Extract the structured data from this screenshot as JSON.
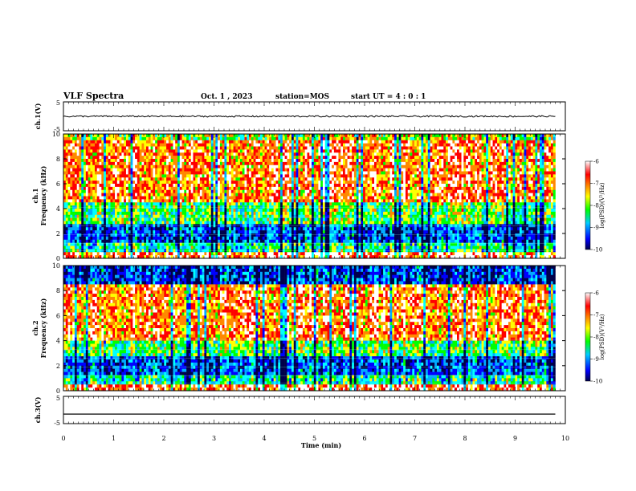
{
  "header": {
    "title": "VLF Spectra",
    "date": "Oct. 1 , 2023",
    "station": "station=MOS",
    "start_ut": "start UT =  4 : 0 : 1"
  },
  "chart_data": [
    {
      "type": "line",
      "panel": "ch1-waveform",
      "ylabel": "ch.1(V)",
      "ylim": [
        -5,
        5
      ],
      "y_ticks": [
        "5",
        "-5"
      ],
      "x_range_min": [
        0,
        10
      ],
      "data_extent_min": [
        0,
        9.8
      ],
      "series": [
        {
          "values_approx_V": 0.0
        }
      ]
    },
    {
      "type": "heatmap",
      "panel": "ch1-spectrogram",
      "ylabel_line1": "ch.1",
      "ylabel_line2": "Frequency (kHz)",
      "ylim": [
        0,
        10
      ],
      "y_ticks": [
        "0",
        "2",
        "4",
        "6",
        "8",
        "10"
      ],
      "x_range_min": [
        0,
        10
      ],
      "data_extent_min": [
        0,
        9.8
      ],
      "dominant_power_band_kHz": [
        4.5,
        9.5
      ],
      "colorbar": {
        "label": "log(PSD)(V²/Hz)",
        "range": [
          -10,
          -6
        ],
        "ticks": [
          "-6",
          "-7",
          "-8",
          "-9",
          "-10"
        ]
      }
    },
    {
      "type": "heatmap",
      "panel": "ch2-spectrogram",
      "ylabel_line1": "ch.2",
      "ylabel_line2": "Frequency (kHz)",
      "ylim": [
        0,
        10
      ],
      "y_ticks": [
        "0",
        "2",
        "4",
        "6",
        "8",
        "10"
      ],
      "x_range_min": [
        0,
        10
      ],
      "data_extent_min": [
        0,
        9.8
      ],
      "dominant_power_band_kHz": [
        4.0,
        8.5
      ],
      "colorbar": {
        "label": "log(PSD)(V²/Hz)",
        "range": [
          -10,
          -6
        ],
        "ticks": [
          "-6",
          "-7",
          "-8",
          "-9",
          "-10"
        ]
      }
    },
    {
      "type": "line",
      "panel": "ch3-waveform",
      "ylabel": "ch.3(V)",
      "ylim": [
        -5,
        5
      ],
      "y_ticks": [
        "5",
        "-5"
      ],
      "x_range_min": [
        0,
        10
      ],
      "data_extent_min": [
        0,
        9.8
      ],
      "series": [
        {
          "values_approx_V": -1.5
        }
      ]
    }
  ],
  "xaxis": {
    "label": "Time (min)",
    "ticks": [
      "0",
      "1",
      "2",
      "3",
      "4",
      "5",
      "6",
      "7",
      "8",
      "9",
      "10"
    ]
  },
  "colors": {
    "colormap": [
      "#00004a",
      "#0000ff",
      "#00aaff",
      "#00ffff",
      "#00ff00",
      "#ffff00",
      "#ff8800",
      "#ff0000",
      "#ffffff"
    ]
  }
}
